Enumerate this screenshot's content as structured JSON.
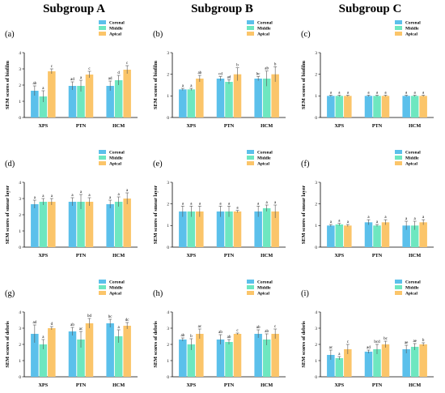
{
  "subgroup_titles": [
    "Subgroup A",
    "Subgroup B",
    "Subgroup C"
  ],
  "colors": {
    "Coronal": "#5bc0eb",
    "Middle": "#6ee7c0",
    "Apical": "#fbc56a"
  },
  "chart_data": [
    {
      "panel": "(a)",
      "type": "bar",
      "ylabel": "SEM scores of biofilm",
      "ylim": [
        0,
        4
      ],
      "yticks": [
        0,
        1,
        2,
        3,
        4
      ],
      "categories": [
        "XPS",
        "PTN",
        "HCM"
      ],
      "legend": "top-right",
      "series": [
        {
          "name": "Coronal",
          "values": [
            1.65,
            1.95,
            1.95
          ],
          "errors": [
            0.3,
            0.25,
            0.3
          ],
          "labels": [
            "ab",
            "ad",
            "ad"
          ]
        },
        {
          "name": "Middle",
          "values": [
            1.3,
            1.95,
            2.3
          ],
          "errors": [
            0.35,
            0.35,
            0.3
          ],
          "labels": [
            "a",
            "a",
            "d"
          ]
        },
        {
          "name": "Apical",
          "values": [
            2.85,
            2.65,
            2.95
          ],
          "errors": [
            0.15,
            0.2,
            0.25
          ],
          "labels": [
            "c",
            "c",
            "c"
          ]
        }
      ]
    },
    {
      "panel": "(b)",
      "type": "bar",
      "ylabel": "SEM scores of biofilm",
      "ylim": [
        0,
        3
      ],
      "yticks": [
        0,
        1,
        2,
        3
      ],
      "categories": [
        "XPS",
        "PTN",
        "HCM"
      ],
      "legend": "top-right",
      "series": [
        {
          "name": "Coronal",
          "values": [
            1.3,
            1.8,
            1.8
          ],
          "errors": [
            0.05,
            0.1,
            0.1
          ],
          "labels": [
            "a",
            "cd",
            "bc"
          ]
        },
        {
          "name": "Middle",
          "values": [
            1.3,
            1.65,
            1.8
          ],
          "errors": [
            0.05,
            0.1,
            0.35
          ],
          "labels": [
            "a",
            "ad",
            "ab"
          ]
        },
        {
          "name": "Apical",
          "values": [
            1.8,
            2.0,
            2.0
          ],
          "errors": [
            0.15,
            0.3,
            0.35
          ],
          "labels": [
            "ab",
            "b",
            "b"
          ]
        }
      ]
    },
    {
      "panel": "(c)",
      "type": "bar",
      "ylabel": "SEM scores of biofilm",
      "ylim": [
        0,
        3
      ],
      "yticks": [
        0,
        1,
        2,
        3
      ],
      "categories": [
        "XPS",
        "PTN",
        "HCM"
      ],
      "legend": "top-right",
      "series": [
        {
          "name": "Coronal",
          "values": [
            1.0,
            1.0,
            1.0
          ],
          "errors": [
            0.03,
            0.03,
            0.03
          ],
          "labels": [
            "a",
            "a",
            "a"
          ]
        },
        {
          "name": "Middle",
          "values": [
            1.0,
            1.0,
            1.0
          ],
          "errors": [
            0.03,
            0.03,
            0.03
          ],
          "labels": [
            "a",
            "a",
            "a"
          ]
        },
        {
          "name": "Apical",
          "values": [
            1.0,
            1.0,
            1.0
          ],
          "errors": [
            0.03,
            0.03,
            0.03
          ],
          "labels": [
            "a",
            "a",
            "a"
          ]
        }
      ]
    },
    {
      "panel": "(d)",
      "type": "bar",
      "ylabel": "SEM scores of smear layer",
      "ylim": [
        0,
        4
      ],
      "yticks": [
        0,
        1,
        2,
        3,
        4
      ],
      "categories": [
        "XPS",
        "PTN",
        "HCM"
      ],
      "legend": "top-right",
      "series": [
        {
          "name": "Coronal",
          "values": [
            2.65,
            2.8,
            2.65
          ],
          "errors": [
            0.25,
            0.25,
            0.25
          ],
          "labels": [
            "a",
            "a",
            "a"
          ]
        },
        {
          "name": "Middle",
          "values": [
            2.8,
            2.8,
            2.8
          ],
          "errors": [
            0.2,
            0.45,
            0.3
          ],
          "labels": [
            "a",
            "a",
            "a"
          ]
        },
        {
          "name": "Apical",
          "values": [
            2.8,
            2.8,
            3.0
          ],
          "errors": [
            0.2,
            0.25,
            0.35
          ],
          "labels": [
            "a",
            "a",
            "a"
          ]
        }
      ]
    },
    {
      "panel": "(e)",
      "type": "bar",
      "ylabel": "SEM scores of smear layer",
      "ylim": [
        0,
        3
      ],
      "yticks": [
        0,
        1,
        2,
        3
      ],
      "categories": [
        "XPS",
        "PTN",
        "HCM"
      ],
      "legend": "top-right",
      "series": [
        {
          "name": "Coronal",
          "values": [
            1.65,
            1.65,
            1.65
          ],
          "errors": [
            0.25,
            0.25,
            0.25
          ],
          "labels": [
            "a",
            "a",
            "a"
          ]
        },
        {
          "name": "Middle",
          "values": [
            1.65,
            1.65,
            1.8
          ],
          "errors": [
            0.25,
            0.25,
            0.15
          ],
          "labels": [
            "a",
            "a",
            "a"
          ]
        },
        {
          "name": "Apical",
          "values": [
            1.65,
            1.65,
            1.65
          ],
          "errors": [
            0.25,
            0.05,
            0.3
          ],
          "labels": [
            "a",
            "a",
            "a"
          ]
        }
      ]
    },
    {
      "panel": "(f)",
      "type": "bar",
      "ylabel": "SEM scores of smear layer",
      "ylim": [
        0,
        3
      ],
      "yticks": [
        0,
        1,
        2,
        3
      ],
      "categories": [
        "XPS",
        "PTN",
        "HCM"
      ],
      "legend": "top-right",
      "series": [
        {
          "name": "Coronal",
          "values": [
            1.0,
            1.15,
            1.0
          ],
          "errors": [
            0.05,
            0.12,
            0.2
          ],
          "labels": [
            "a",
            "a",
            "a"
          ]
        },
        {
          "name": "Middle",
          "values": [
            1.05,
            1.0,
            1.0
          ],
          "errors": [
            0.05,
            0.05,
            0.2
          ],
          "labels": [
            "a",
            "a",
            "a"
          ]
        },
        {
          "name": "Apical",
          "values": [
            1.0,
            1.15,
            1.15
          ],
          "errors": [
            0.05,
            0.12,
            0.12
          ],
          "labels": [
            "a",
            "a",
            "a"
          ]
        }
      ]
    },
    {
      "panel": "(g)",
      "type": "bar",
      "ylabel": "SEM scores of debris",
      "ylim": [
        0,
        4
      ],
      "yticks": [
        0,
        1,
        2,
        3,
        4
      ],
      "categories": [
        "XPS",
        "PTN",
        "HCM"
      ],
      "legend": "top-right",
      "series": [
        {
          "name": "Coronal",
          "values": [
            2.65,
            2.8,
            3.3
          ],
          "errors": [
            0.55,
            0.25,
            0.25
          ],
          "labels": [
            "ad",
            "ab",
            "bc"
          ]
        },
        {
          "name": "Middle",
          "values": [
            2.0,
            2.3,
            2.5
          ],
          "errors": [
            0.3,
            0.5,
            0.4
          ],
          "labels": [
            "a",
            "ac",
            "a"
          ]
        },
        {
          "name": "Apical",
          "values": [
            3.0,
            3.3,
            3.15
          ],
          "errors": [
            0.1,
            0.3,
            0.2
          ],
          "labels": [
            "d",
            "bd",
            "dc"
          ]
        }
      ]
    },
    {
      "panel": "(h)",
      "type": "bar",
      "ylabel": "SEM scores of debris",
      "ylim": [
        0,
        4
      ],
      "yticks": [
        0,
        1,
        2,
        3,
        4
      ],
      "categories": [
        "XPS",
        "PTN",
        "HCM"
      ],
      "legend": "top-right",
      "series": [
        {
          "name": "Coronal",
          "values": [
            2.3,
            2.3,
            2.65
          ],
          "errors": [
            0.1,
            0.3,
            0.25
          ],
          "labels": [
            "ab",
            "ab",
            "ab"
          ]
        },
        {
          "name": "Middle",
          "values": [
            2.0,
            2.15,
            2.3
          ],
          "errors": [
            0.35,
            0.15,
            0.35
          ],
          "labels": [
            "b",
            "ab",
            "ab"
          ]
        },
        {
          "name": "Apical",
          "values": [
            2.65,
            2.65,
            2.65
          ],
          "errors": [
            0.3,
            0.05,
            0.3
          ],
          "labels": [
            "ac",
            "c",
            "c"
          ]
        }
      ]
    },
    {
      "panel": "(i)",
      "type": "bar",
      "ylabel": "SEM scores of debris",
      "ylim": [
        0,
        4
      ],
      "yticks": [
        0,
        1,
        2,
        3,
        4
      ],
      "categories": [
        "XPS",
        "PTN",
        "HCM"
      ],
      "legend": "top-right",
      "series": [
        {
          "name": "Coronal",
          "values": [
            1.35,
            1.55,
            1.7
          ],
          "errors": [
            0.3,
            0.1,
            0.25
          ],
          "labels": [
            "ac",
            "ad",
            "ae"
          ]
        },
        {
          "name": "Middle",
          "values": [
            1.15,
            1.7,
            1.85
          ],
          "errors": [
            0.1,
            0.3,
            0.2
          ],
          "labels": [
            "a",
            "bcd",
            "ae"
          ]
        },
        {
          "name": "Apical",
          "values": [
            1.7,
            2.0,
            2.0
          ],
          "errors": [
            0.3,
            0.2,
            0.1
          ],
          "labels": [
            "c",
            "bc",
            "b"
          ]
        }
      ]
    }
  ]
}
